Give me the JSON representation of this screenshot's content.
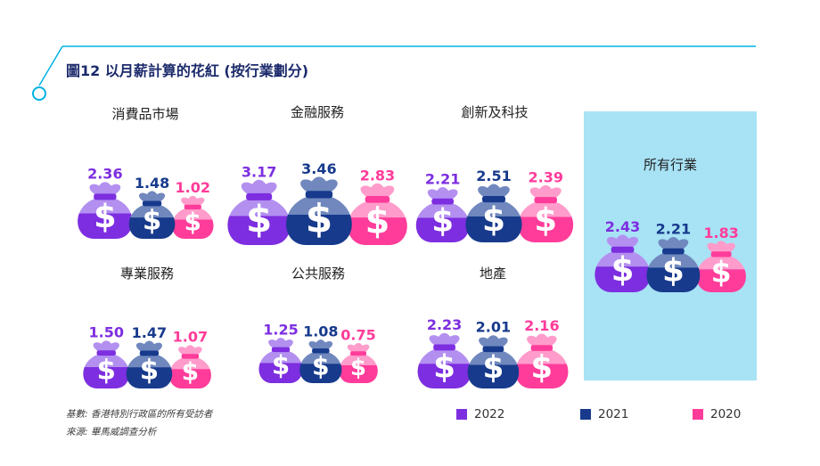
{
  "title": "圖12 以月薪計算的花紅 (按行業劃分)",
  "footnotes": [
    "基數: 香港特別行政區的所有受訪者",
    "來源: 畢馬威調查分析"
  ],
  "colors": {
    "accent": "#00b2e3",
    "highlight_panel": "#a8e2f5",
    "title": "#1b2a6b"
  },
  "chart_data": {
    "type": "bar",
    "title": "圖12 以月薪計算的花紅 (按行業劃分)",
    "series": [
      {
        "name": "2022",
        "color": "#7d2ee0",
        "light": "#b390f0",
        "dark": "#4a1d8c"
      },
      {
        "name": "2021",
        "color": "#173a8c",
        "light": "#7088be",
        "dark": "#0c1f52"
      },
      {
        "name": "2020",
        "color": "#ff3c9a",
        "light": "#ff9ccb",
        "dark": "#a8145c"
      }
    ],
    "categories": [
      "消費品市場",
      "金融服務",
      "創新及科技",
      "所有行業",
      "專業服務",
      "公共服務",
      "地產"
    ],
    "values": [
      [
        2.36,
        1.48,
        1.02
      ],
      [
        3.17,
        3.46,
        2.83
      ],
      [
        2.21,
        2.51,
        2.39
      ],
      [
        2.43,
        2.21,
        1.83
      ],
      [
        1.5,
        1.47,
        1.07
      ],
      [
        1.25,
        1.08,
        0.75
      ],
      [
        2.23,
        2.01,
        2.16
      ]
    ],
    "value_labels": [
      [
        "2.36",
        "1.48",
        "1.02"
      ],
      [
        "3.17",
        "3.46",
        "2.83"
      ],
      [
        "2.21",
        "2.51",
        "2.39"
      ],
      [
        "2.43",
        "2.21",
        "1.83"
      ],
      [
        "1.50",
        "1.47",
        "1.07"
      ],
      [
        "1.25",
        "1.08",
        "0.75"
      ],
      [
        "2.23",
        "2.01",
        "2.16"
      ]
    ],
    "highlighted_category": "所有行業",
    "legend": [
      "2022",
      "2021",
      "2020"
    ],
    "legend_position": "bottom-right"
  }
}
